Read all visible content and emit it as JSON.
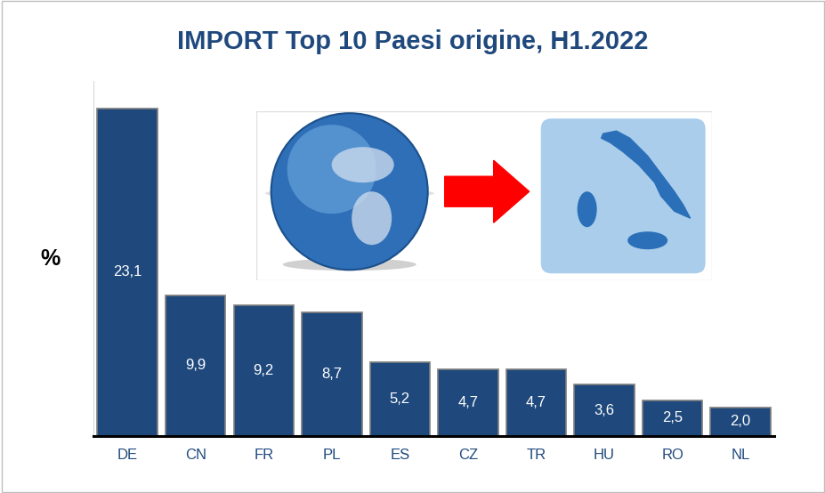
{
  "chart_data": {
    "type": "bar",
    "title": "IMPORT Top 10 Paesi origine, H1.2022",
    "y_label": "%",
    "categories": [
      "DE",
      "CN",
      "FR",
      "PL",
      "ES",
      "CZ",
      "TR",
      "HU",
      "RO",
      "NL"
    ],
    "values": [
      23.1,
      9.9,
      9.2,
      8.7,
      5.2,
      4.7,
      4.7,
      3.6,
      2.5,
      2.0
    ],
    "value_labels": [
      "23,1",
      "9,9",
      "9,2",
      "8,7",
      "5,2",
      "4,7",
      "4,7",
      "3,6",
      "2,5",
      "2,0"
    ],
    "color": "#1F497D",
    "ylim": [
      0,
      25
    ],
    "yticks": [],
    "grid": false,
    "data_labels": true,
    "tick_labels": "x"
  }
}
